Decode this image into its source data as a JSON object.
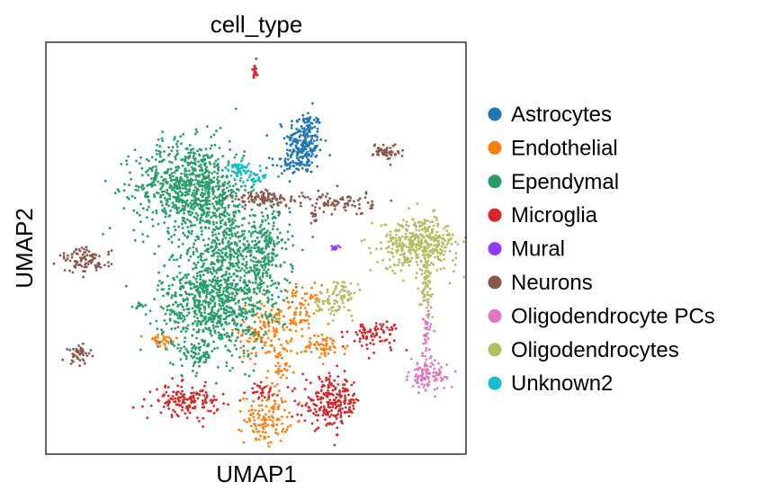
{
  "chart_data": {
    "type": "scatter",
    "title": "cell_type",
    "xlabel": "UMAP1",
    "ylabel": "UMAP2",
    "xlim": [
      0,
      100
    ],
    "ylim": [
      0,
      100
    ],
    "xticks": [],
    "yticks": [],
    "grid": false,
    "legend_position": "right",
    "series": [
      {
        "name": "Astrocytes",
        "color": "#1f77b4",
        "clusters": [
          {
            "x": 61.5,
            "y": 75.5,
            "sx": 2.2,
            "sy": 4.0,
            "n": 230
          },
          {
            "x": 57.5,
            "y": 70.5,
            "sx": 2.0,
            "sy": 1.2,
            "n": 40
          }
        ]
      },
      {
        "name": "Endothelial",
        "color": "#ff7f0e",
        "clusters": [
          {
            "x": 52.0,
            "y": 30.0,
            "sx": 3.0,
            "sy": 3.5,
            "n": 120
          },
          {
            "x": 60.5,
            "y": 35.0,
            "sx": 2.4,
            "sy": 3.0,
            "n": 80
          },
          {
            "x": 66.0,
            "y": 26.0,
            "sx": 3.0,
            "sy": 1.5,
            "n": 60
          },
          {
            "x": 52.5,
            "y": 8.5,
            "sx": 2.6,
            "sy": 3.0,
            "n": 120
          },
          {
            "x": 55.5,
            "y": 19.5,
            "sx": 1.4,
            "sy": 3.5,
            "n": 40
          },
          {
            "x": 27.5,
            "y": 27.5,
            "sx": 2.0,
            "sy": 1.0,
            "n": 30
          }
        ]
      },
      {
        "name": "Ependymal",
        "color": "#279e68",
        "clusters": [
          {
            "x": 34.5,
            "y": 65.0,
            "sx": 6.5,
            "sy": 5.5,
            "n": 800
          },
          {
            "x": 40.0,
            "y": 37.5,
            "sx": 6.5,
            "sy": 7.0,
            "n": 900
          },
          {
            "x": 52.0,
            "y": 48.5,
            "sx": 3.0,
            "sy": 6.0,
            "n": 250
          },
          {
            "x": 44.0,
            "y": 51.0,
            "sx": 4.0,
            "sy": 3.0,
            "n": 150
          },
          {
            "x": 42.0,
            "y": 58.0,
            "sx": 3.0,
            "sy": 2.5,
            "n": 60
          },
          {
            "x": 22.5,
            "y": 36.0,
            "sx": 0.8,
            "sy": 0.6,
            "n": 15
          },
          {
            "x": 36.0,
            "y": 24.0,
            "sx": 1.8,
            "sy": 1.4,
            "n": 50
          }
        ]
      },
      {
        "name": "Microglia",
        "color": "#d62728",
        "clusters": [
          {
            "x": 68.0,
            "y": 12.5,
            "sx": 3.5,
            "sy": 3.0,
            "n": 230
          },
          {
            "x": 33.5,
            "y": 13.0,
            "sx": 3.8,
            "sy": 1.8,
            "n": 150
          },
          {
            "x": 78.0,
            "y": 29.0,
            "sx": 3.0,
            "sy": 1.8,
            "n": 80
          },
          {
            "x": 51.0,
            "y": 15.5,
            "sx": 2.0,
            "sy": 1.0,
            "n": 30
          },
          {
            "x": 49.5,
            "y": 93.5,
            "sx": 0.5,
            "sy": 1.3,
            "n": 15
          }
        ]
      },
      {
        "name": "Mural",
        "color": "#9437ff",
        "clusters": [
          {
            "x": 69.0,
            "y": 50.0,
            "sx": 0.6,
            "sy": 0.4,
            "n": 12
          }
        ]
      },
      {
        "name": "Neurons",
        "color": "#8c564b",
        "clusters": [
          {
            "x": 81.0,
            "y": 73.5,
            "sx": 1.5,
            "sy": 1.0,
            "n": 50
          },
          {
            "x": 52.5,
            "y": 62.0,
            "sx": 4.0,
            "sy": 0.9,
            "n": 100
          },
          {
            "x": 70.0,
            "y": 61.0,
            "sx": 4.0,
            "sy": 1.5,
            "n": 80
          },
          {
            "x": 9.5,
            "y": 47.0,
            "sx": 3.0,
            "sy": 1.5,
            "n": 90
          },
          {
            "x": 8.0,
            "y": 24.5,
            "sx": 1.5,
            "sy": 1.3,
            "n": 40
          },
          {
            "x": 63.5,
            "y": 57.5,
            "sx": 0.6,
            "sy": 0.8,
            "n": 10
          }
        ]
      },
      {
        "name": "Oligodendrocyte PCs",
        "color": "#e377c2",
        "clusters": [
          {
            "x": 91.0,
            "y": 19.0,
            "sx": 2.2,
            "sy": 2.0,
            "n": 100
          },
          {
            "x": 90.5,
            "y": 28.5,
            "sx": 0.6,
            "sy": 4.0,
            "n": 40
          }
        ]
      },
      {
        "name": "Oligodendrocytes",
        "color": "#b5bd61",
        "clusters": [
          {
            "x": 89.0,
            "y": 51.0,
            "sx": 4.5,
            "sy": 3.2,
            "n": 400
          },
          {
            "x": 90.5,
            "y": 41.5,
            "sx": 0.8,
            "sy": 3.0,
            "n": 60
          },
          {
            "x": 68.0,
            "y": 36.5,
            "sx": 2.5,
            "sy": 1.5,
            "n": 60
          },
          {
            "x": 71.0,
            "y": 39.5,
            "sx": 1.5,
            "sy": 1.5,
            "n": 40
          }
        ]
      },
      {
        "name": "Unknown2",
        "color": "#17becf",
        "clusters": [
          {
            "x": 45.5,
            "y": 69.5,
            "sx": 1.3,
            "sy": 1.0,
            "n": 50
          },
          {
            "x": 49.5,
            "y": 67.0,
            "sx": 2.0,
            "sy": 0.9,
            "n": 30
          }
        ]
      }
    ]
  }
}
